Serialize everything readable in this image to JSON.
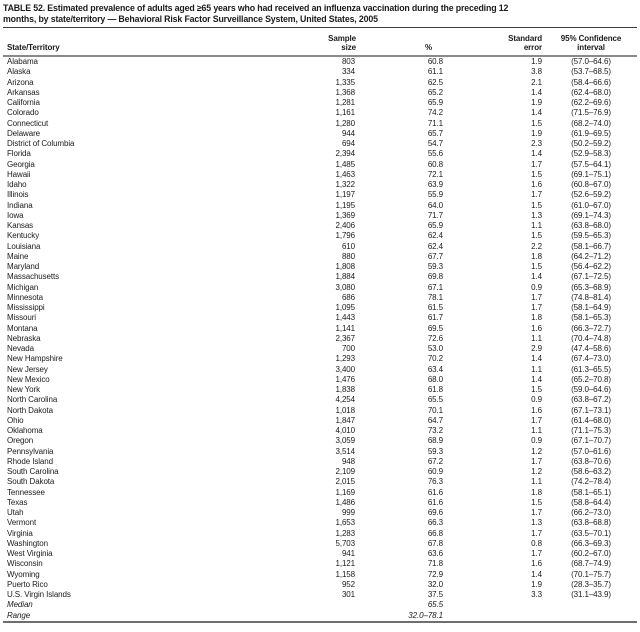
{
  "title": "TABLE 52. Estimated prevalence of adults aged ≥65 years who had received an influenza vaccination during the preceding 12\nmonths, by state/territory — Behavioral Risk Factor Surveillance System, United States, 2005",
  "columns": {
    "state": "State/Territory",
    "sample": "Sample\nsize",
    "pct": "%",
    "se": "Standard\nerror",
    "ci": "95% Confidence\ninterval"
  },
  "colors": {
    "background": "#ffffff",
    "text": "#1b1b1b",
    "title_rule": "#3c3c3c",
    "header_rule": "#8a8a8a",
    "bottom_rule": "#6e6e6e"
  },
  "rows": [
    {
      "state": "Alabama",
      "sample": "803",
      "pct": "60.8",
      "se": "1.9",
      "ci": "(57.0–64.6)"
    },
    {
      "state": "Alaska",
      "sample": "334",
      "pct": "61.1",
      "se": "3.8",
      "ci": "(53.7–68.5)"
    },
    {
      "state": "Arizona",
      "sample": "1,335",
      "pct": "62.5",
      "se": "2.1",
      "ci": "(58.4–66.6)"
    },
    {
      "state": "Arkansas",
      "sample": "1,368",
      "pct": "65.2",
      "se": "1.4",
      "ci": "(62.4–68.0)"
    },
    {
      "state": "California",
      "sample": "1,281",
      "pct": "65.9",
      "se": "1.9",
      "ci": "(62.2–69.6)"
    },
    {
      "state": "Colorado",
      "sample": "1,161",
      "pct": "74.2",
      "se": "1.4",
      "ci": "(71.5–76.9)"
    },
    {
      "state": "Connecticut",
      "sample": "1,280",
      "pct": "71.1",
      "se": "1.5",
      "ci": "(68.2–74.0)"
    },
    {
      "state": "Delaware",
      "sample": "944",
      "pct": "65.7",
      "se": "1.9",
      "ci": "(61.9–69.5)"
    },
    {
      "state": "District of Columbia",
      "sample": "694",
      "pct": "54.7",
      "se": "2.3",
      "ci": "(50.2–59.2)"
    },
    {
      "state": "Florida",
      "sample": "2,394",
      "pct": "55.6",
      "se": "1.4",
      "ci": "(52.9–58.3)"
    },
    {
      "state": "Georgia",
      "sample": "1,485",
      "pct": "60.8",
      "se": "1.7",
      "ci": "(57.5–64.1)"
    },
    {
      "state": "Hawaii",
      "sample": "1,463",
      "pct": "72.1",
      "se": "1.5",
      "ci": "(69.1–75.1)"
    },
    {
      "state": "Idaho",
      "sample": "1,322",
      "pct": "63.9",
      "se": "1.6",
      "ci": "(60.8–67.0)"
    },
    {
      "state": "Illinois",
      "sample": "1,197",
      "pct": "55.9",
      "se": "1.7",
      "ci": "(52.6–59.2)"
    },
    {
      "state": "Indiana",
      "sample": "1,195",
      "pct": "64.0",
      "se": "1.5",
      "ci": "(61.0–67.0)"
    },
    {
      "state": "Iowa",
      "sample": "1,369",
      "pct": "71.7",
      "se": "1.3",
      "ci": "(69.1–74.3)"
    },
    {
      "state": "Kansas",
      "sample": "2,406",
      "pct": "65.9",
      "se": "1.1",
      "ci": "(63.8–68.0)"
    },
    {
      "state": "Kentucky",
      "sample": "1,796",
      "pct": "62.4",
      "se": "1.5",
      "ci": "(59.5–65.3)"
    },
    {
      "state": "Louisiana",
      "sample": "610",
      "pct": "62.4",
      "se": "2.2",
      "ci": "(58.1–66.7)"
    },
    {
      "state": "Maine",
      "sample": "880",
      "pct": "67.7",
      "se": "1.8",
      "ci": "(64.2–71.2)"
    },
    {
      "state": "Maryland",
      "sample": "1,808",
      "pct": "59.3",
      "se": "1.5",
      "ci": "(56.4–62.2)"
    },
    {
      "state": "Massachusetts",
      "sample": "1,884",
      "pct": "69.8",
      "se": "1.4",
      "ci": "(67.1–72.5)"
    },
    {
      "state": "Michigan",
      "sample": "3,080",
      "pct": "67.1",
      "se": "0.9",
      "ci": "(65.3–68.9)"
    },
    {
      "state": "Minnesota",
      "sample": "686",
      "pct": "78.1",
      "se": "1.7",
      "ci": "(74.8–81.4)"
    },
    {
      "state": "Mississippi",
      "sample": "1,095",
      "pct": "61.5",
      "se": "1.7",
      "ci": "(58.1–64.9)"
    },
    {
      "state": "Missouri",
      "sample": "1,443",
      "pct": "61.7",
      "se": "1.8",
      "ci": "(58.1–65.3)"
    },
    {
      "state": "Montana",
      "sample": "1,141",
      "pct": "69.5",
      "se": "1.6",
      "ci": "(66.3–72.7)"
    },
    {
      "state": "Nebraska",
      "sample": "2,367",
      "pct": "72.6",
      "se": "1.1",
      "ci": "(70.4–74.8)"
    },
    {
      "state": "Nevada",
      "sample": "700",
      "pct": "53.0",
      "se": "2.9",
      "ci": "(47.4–58.6)"
    },
    {
      "state": "New Hampshire",
      "sample": "1,293",
      "pct": "70.2",
      "se": "1.4",
      "ci": "(67.4–73.0)"
    },
    {
      "state": "New Jersey",
      "sample": "3,400",
      "pct": "63.4",
      "se": "1.1",
      "ci": "(61.3–65.5)"
    },
    {
      "state": "New Mexico",
      "sample": "1,476",
      "pct": "68.0",
      "se": "1.4",
      "ci": "(65.2–70.8)"
    },
    {
      "state": "New York",
      "sample": "1,838",
      "pct": "61.8",
      "se": "1.5",
      "ci": "(59.0–64.6)"
    },
    {
      "state": "North Carolina",
      "sample": "4,254",
      "pct": "65.5",
      "se": "0.9",
      "ci": "(63.8–67.2)"
    },
    {
      "state": "North Dakota",
      "sample": "1,018",
      "pct": "70.1",
      "se": "1.6",
      "ci": "(67.1–73.1)"
    },
    {
      "state": "Ohio",
      "sample": "1,847",
      "pct": "64.7",
      "se": "1.7",
      "ci": "(61.4–68.0)"
    },
    {
      "state": "Oklahoma",
      "sample": "4,010",
      "pct": "73.2",
      "se": "1.1",
      "ci": "(71.1–75.3)"
    },
    {
      "state": "Oregon",
      "sample": "3,059",
      "pct": "68.9",
      "se": "0.9",
      "ci": "(67.1–70.7)"
    },
    {
      "state": "Pennsylvania",
      "sample": "3,514",
      "pct": "59.3",
      "se": "1.2",
      "ci": "(57.0–61.6)"
    },
    {
      "state": "Rhode Island",
      "sample": "948",
      "pct": "67.2",
      "se": "1.7",
      "ci": "(63.8–70.6)"
    },
    {
      "state": "South Carolina",
      "sample": "2,109",
      "pct": "60.9",
      "se": "1.2",
      "ci": "(58.6–63.2)"
    },
    {
      "state": "South Dakota",
      "sample": "2,015",
      "pct": "76.3",
      "se": "1.1",
      "ci": "(74.2–78.4)"
    },
    {
      "state": "Tennessee",
      "sample": "1,169",
      "pct": "61.6",
      "se": "1.8",
      "ci": "(58.1–65.1)"
    },
    {
      "state": "Texas",
      "sample": "1,486",
      "pct": "61.6",
      "se": "1.5",
      "ci": "(58.8–64.4)"
    },
    {
      "state": "Utah",
      "sample": "999",
      "pct": "69.6",
      "se": "1.7",
      "ci": "(66.2–73.0)"
    },
    {
      "state": "Vermont",
      "sample": "1,653",
      "pct": "66.3",
      "se": "1.3",
      "ci": "(63.8–68.8)"
    },
    {
      "state": "Virginia",
      "sample": "1,283",
      "pct": "66.8",
      "se": "1.7",
      "ci": "(63.5–70.1)"
    },
    {
      "state": "Washington",
      "sample": "5,703",
      "pct": "67.8",
      "se": "0.8",
      "ci": "(66.3–69.3)"
    },
    {
      "state": "West Virginia",
      "sample": "941",
      "pct": "63.6",
      "se": "1.7",
      "ci": "(60.2–67.0)"
    },
    {
      "state": "Wisconsin",
      "sample": "1,121",
      "pct": "71.8",
      "se": "1.6",
      "ci": "(68.7–74.9)"
    },
    {
      "state": "Wyoming",
      "sample": "1,158",
      "pct": "72.9",
      "se": "1.4",
      "ci": "(70.1–75.7)"
    },
    {
      "state": "Puerto Rico",
      "sample": "952",
      "pct": "32.0",
      "se": "1.9",
      "ci": "(28.3–35.7)"
    },
    {
      "state": "U.S. Virgin Islands",
      "sample": "301",
      "pct": "37.5",
      "se": "3.3",
      "ci": "(31.1–43.9)"
    },
    {
      "state": "Median",
      "sample": "",
      "pct": "65.5",
      "se": "",
      "ci": "",
      "italic": true
    },
    {
      "state": "Range",
      "sample": "",
      "pct": "32.0–78.1",
      "se": "",
      "ci": "",
      "italic": true
    }
  ]
}
